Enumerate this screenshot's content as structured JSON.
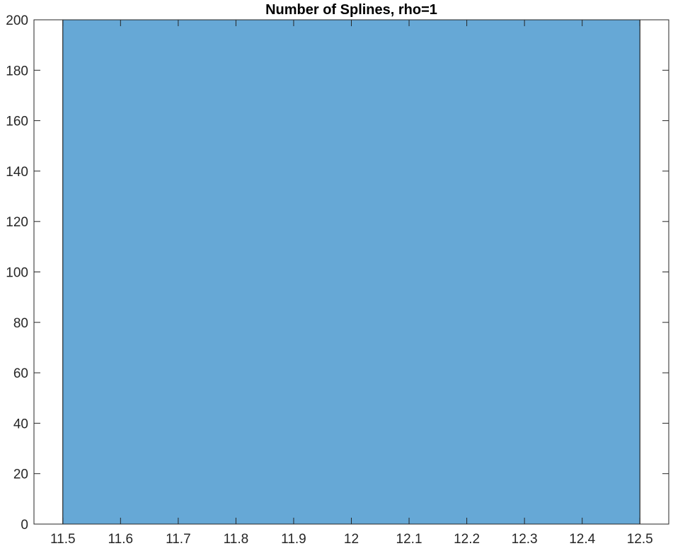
{
  "chart_data": {
    "type": "bar",
    "title": "Number of Splines, rho=1",
    "xlabel": "",
    "ylabel": "",
    "bins": [
      {
        "x_start": 11.5,
        "x_end": 12.5,
        "value": 200
      }
    ],
    "xlim": [
      11.45,
      12.55
    ],
    "ylim": [
      0,
      200
    ],
    "x_ticks": [
      11.5,
      11.6,
      11.7,
      11.8,
      11.9,
      12,
      12.1,
      12.2,
      12.3,
      12.4,
      12.5
    ],
    "x_tick_labels": [
      "11.5",
      "11.6",
      "11.7",
      "11.8",
      "11.9",
      "12",
      "12.1",
      "12.2",
      "12.3",
      "12.4",
      "12.5"
    ],
    "y_ticks": [
      0,
      20,
      40,
      60,
      80,
      100,
      120,
      140,
      160,
      180,
      200
    ],
    "y_tick_labels": [
      "0",
      "20",
      "40",
      "60",
      "80",
      "100",
      "120",
      "140",
      "160",
      "180",
      "200"
    ],
    "grid": false,
    "colors": {
      "bar_fill": "#66a8d6",
      "bar_edge": "#000000",
      "axis": "#262626",
      "background": "#ffffff"
    }
  }
}
